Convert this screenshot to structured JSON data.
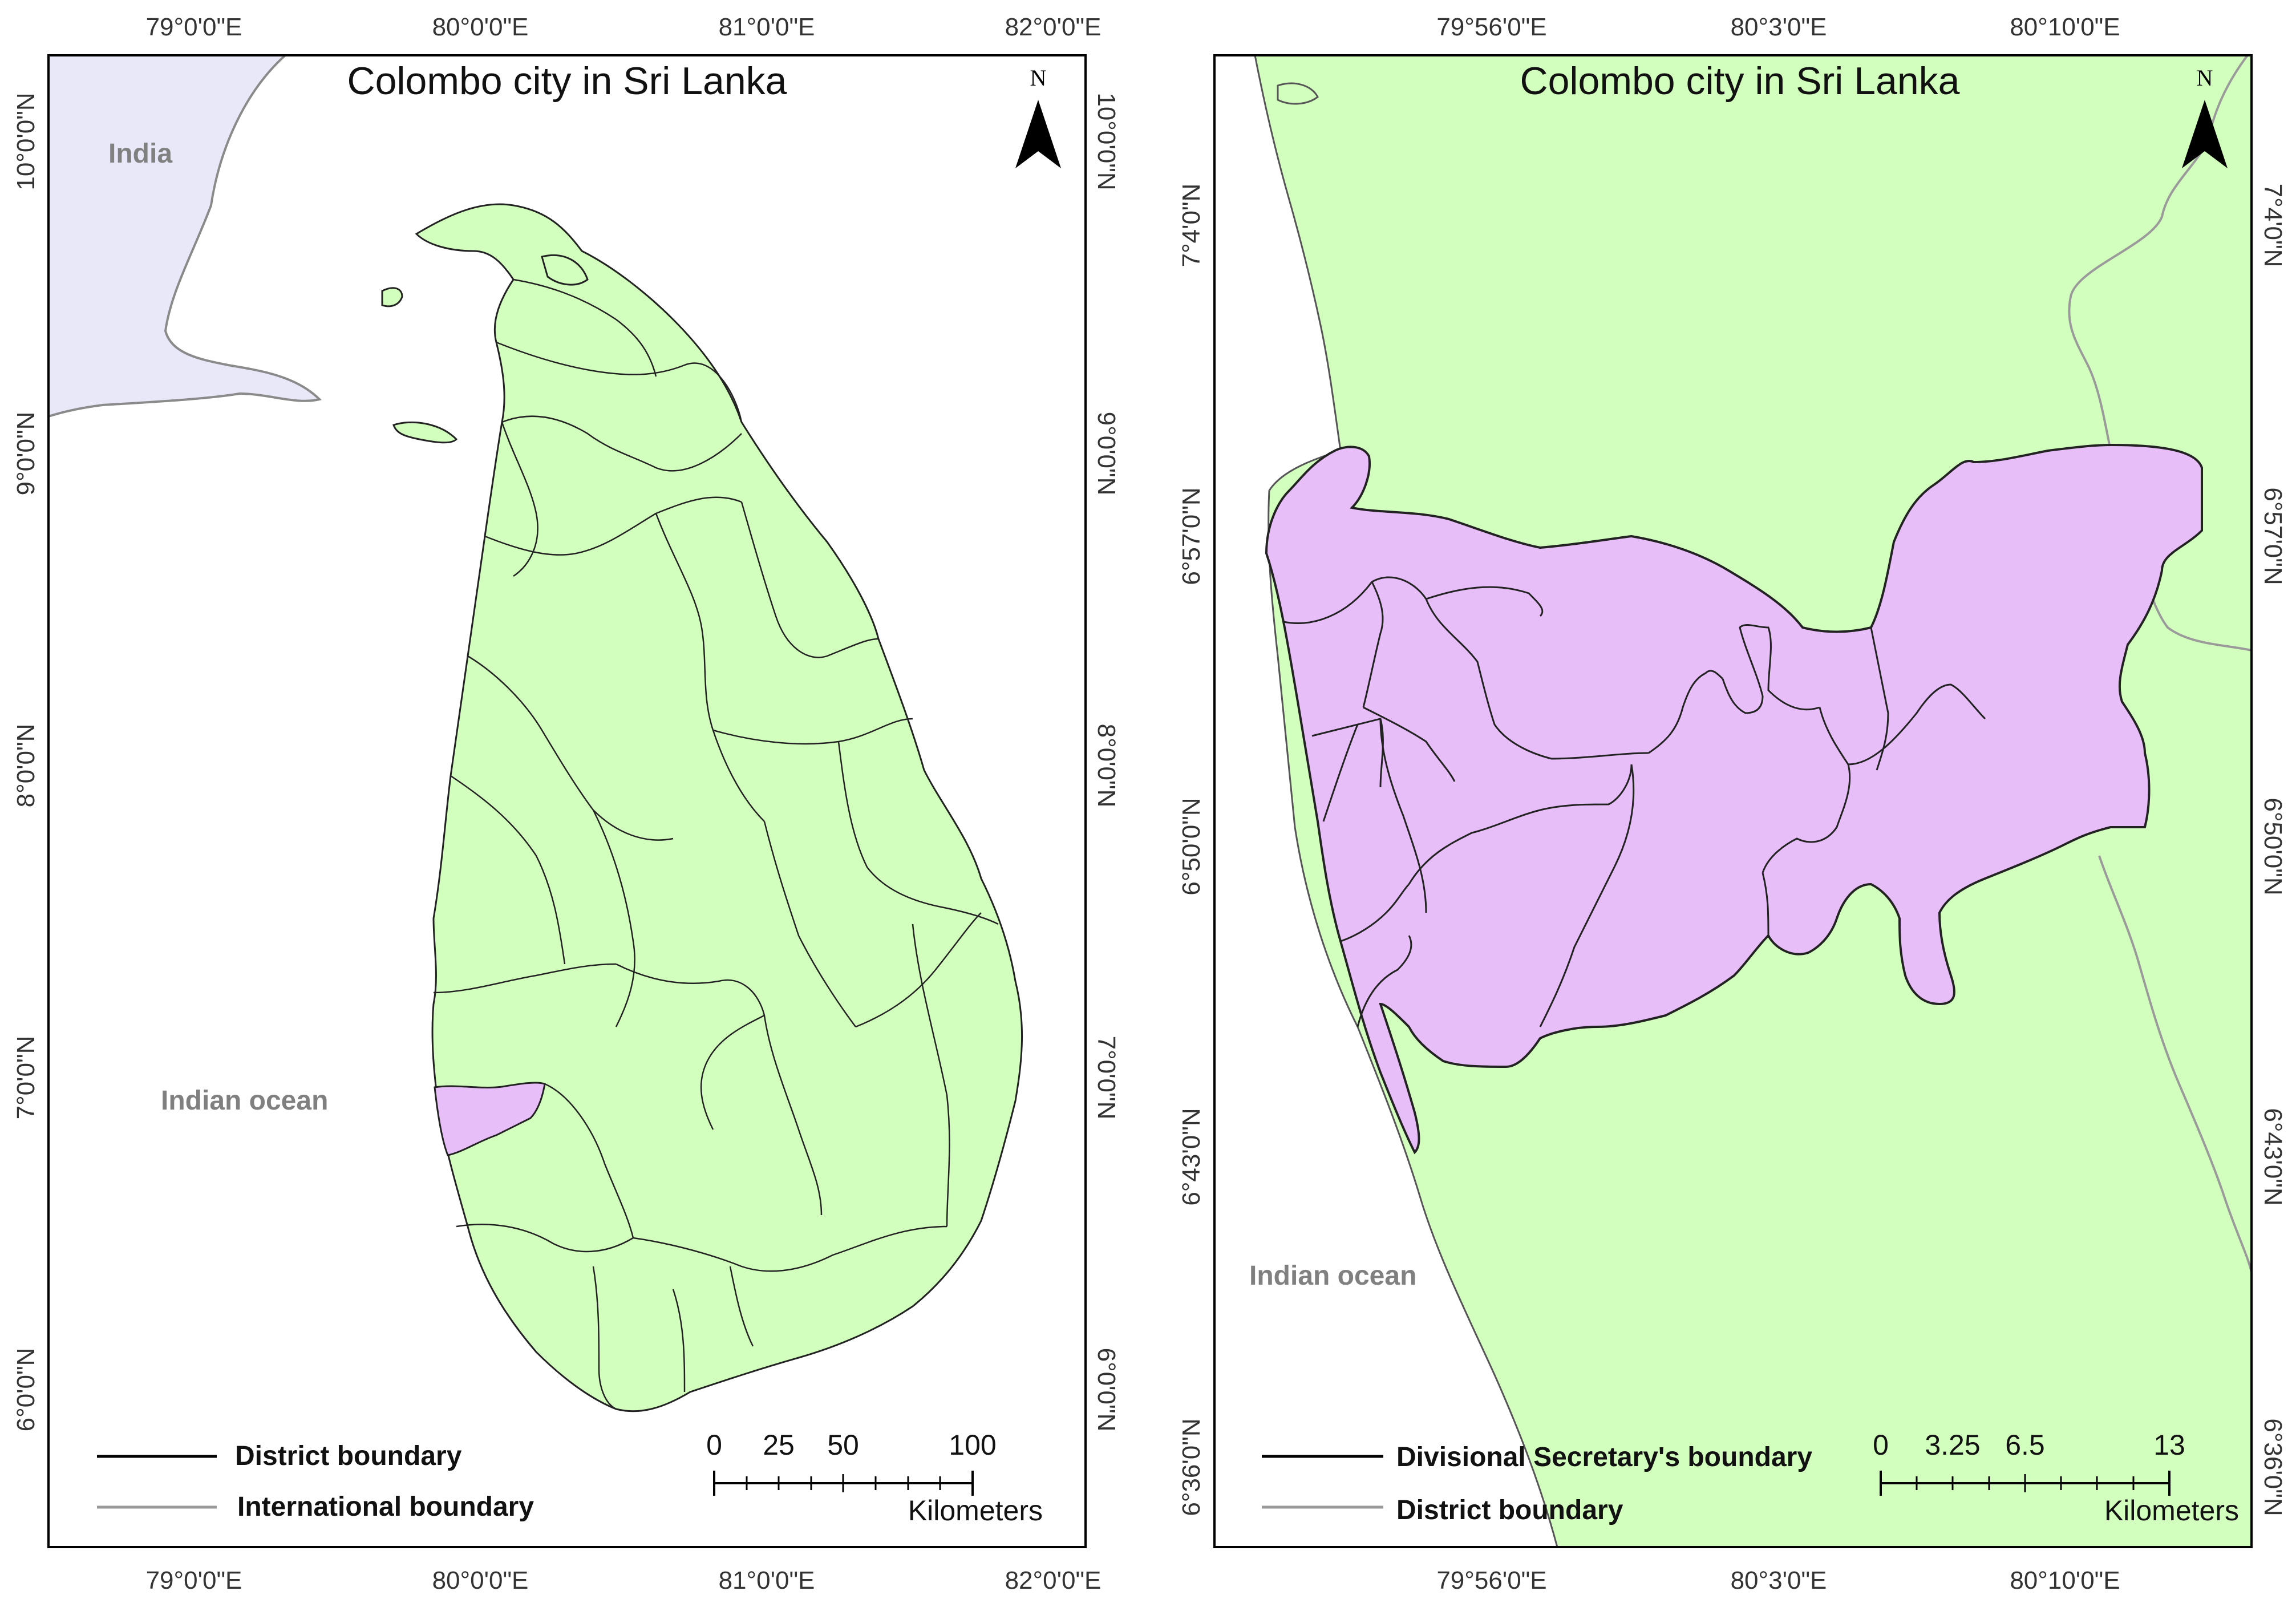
{
  "maps": [
    {
      "title": "Colombo city in Sri Lanka",
      "top_ticks": [
        "79°0'0\"E",
        "80°0'0\"E",
        "81°0'0\"E",
        "82°0'0\"E"
      ],
      "bottom_ticks": [
        "79°0'0\"E",
        "80°0'0\"E",
        "81°0'0\"E",
        "82°0'0\"E"
      ],
      "left_ticks": [
        "10°0'0\"N",
        "9°0'0\"N",
        "8°0'0\"N",
        "7°0'0\"N",
        "6°0'0\"N"
      ],
      "right_ticks": [
        "10°0'0\"N",
        "9°0'0\"N",
        "8°0'0\"N",
        "7°0'0\"N",
        "6°0'0\"N"
      ],
      "place_labels": {
        "country": "India",
        "ocean": "Indian ocean"
      },
      "legend": [
        {
          "label": "District boundary",
          "color": "#000000"
        },
        {
          "label": "International boundary",
          "color": "#9a9a9a"
        }
      ],
      "scale_bar": {
        "ticks": [
          "0",
          "25",
          "50",
          "100"
        ],
        "unit": "Kilometers"
      },
      "north_label": "N",
      "colors": {
        "land": "#d3ffbe",
        "highlight": "#e8bef8",
        "neighbor": "#e8e8f8"
      }
    },
    {
      "title": "Colombo city in Sri Lanka",
      "top_ticks": [
        "79°56'0\"E",
        "80°3'0\"E",
        "80°10'0\"E"
      ],
      "bottom_ticks": [
        "79°56'0\"E",
        "80°3'0\"E",
        "80°10'0\"E"
      ],
      "left_ticks": [
        "7°4'0\"N",
        "6°57'0\"N",
        "6°50'0\"N",
        "6°43'0\"N",
        "6°36'0\"N"
      ],
      "right_ticks": [
        "7°4'0\"N",
        "6°57'0\"N",
        "6°50'0\"N",
        "6°43'0\"N",
        "6°36'0\"N"
      ],
      "place_labels": {
        "ocean": "Indian ocean"
      },
      "legend": [
        {
          "label": "Divisional Secretary's boundary",
          "color": "#000000"
        },
        {
          "label": "District boundary",
          "color": "#9a9a9a"
        }
      ],
      "scale_bar": {
        "ticks": [
          "0",
          "3.25",
          "6.5",
          "13"
        ],
        "unit": "Kilometers"
      },
      "north_label": "N",
      "colors": {
        "land": "#d3ffbe",
        "highlight": "#e8bef8"
      }
    }
  ]
}
